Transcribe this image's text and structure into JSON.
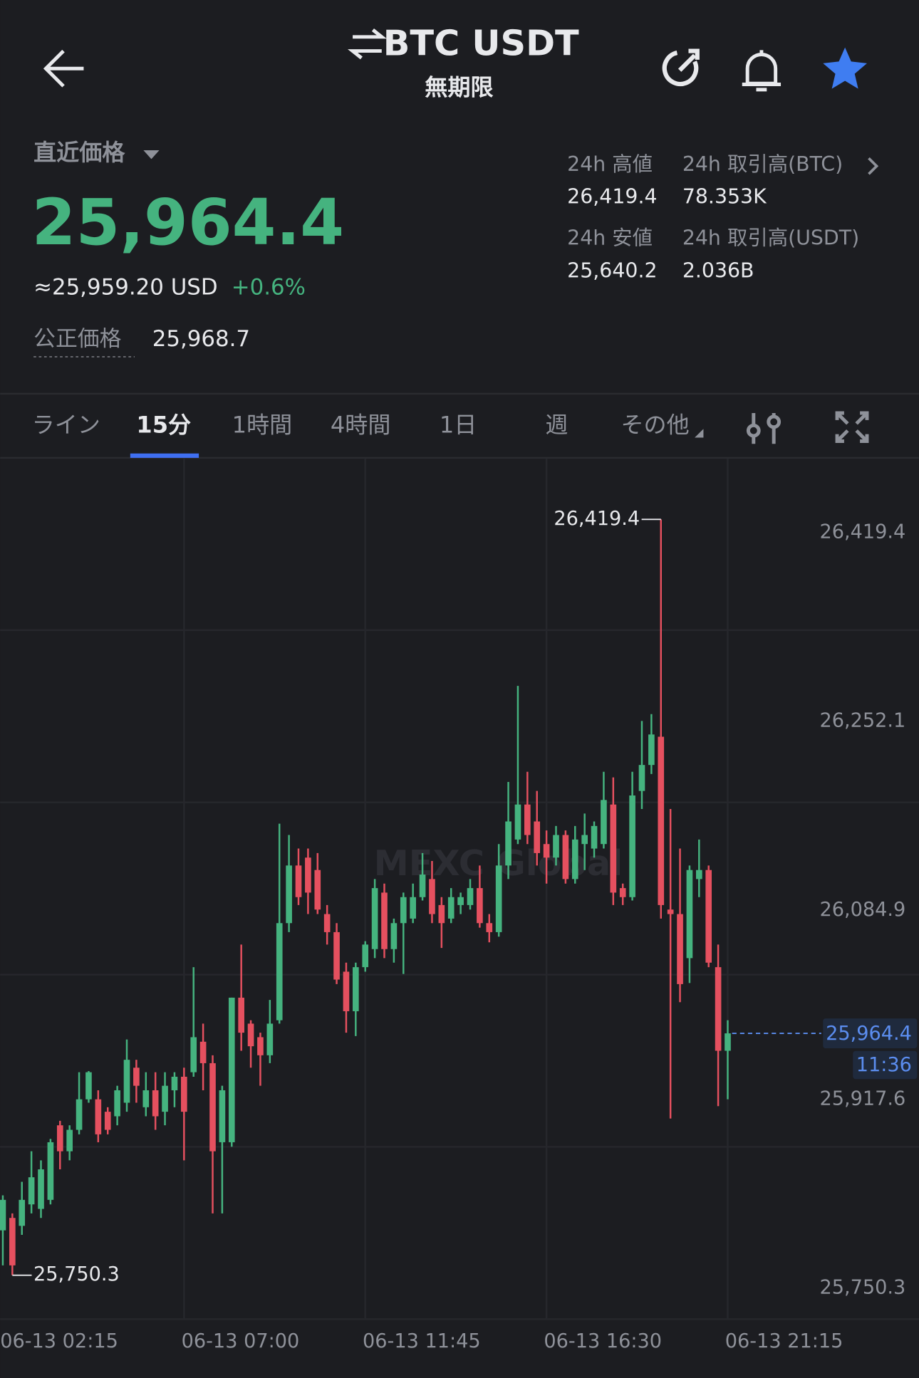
{
  "header": {
    "title": "BTC USDT",
    "subtitle": "無期限"
  },
  "price": {
    "label": "直近価格",
    "last": "25,964.4",
    "usd": "≈25,959.20 USD",
    "change": "+0.6%",
    "fair_label": "公正価格",
    "fair": "25,968.7"
  },
  "stats": [
    {
      "label": "24h 高値",
      "value": "26,419.4"
    },
    {
      "label": "24h 取引高(BTC)",
      "value": "78.353K"
    },
    {
      "label": "24h 安値",
      "value": "25,640.2"
    },
    {
      "label": "24h 取引高(USDT)",
      "value": "2.036B"
    }
  ],
  "tabs": [
    "ライン",
    "15分",
    "1時間",
    "4時間",
    "1日",
    "週",
    "その他"
  ],
  "chart_data": {
    "type": "candlestick",
    "watermark": "MEXC Global",
    "up_color": "#45b37f",
    "down_color": "#e5505f",
    "open": [
      25790,
      25801,
      25794,
      25813,
      25809,
      25817,
      25883,
      25860,
      25879,
      25906,
      25906,
      25895,
      25891,
      25903,
      25934,
      25899,
      25914,
      25895,
      25914,
      25926,
      25930,
      25957,
      25938,
      25868,
      25868,
      25996,
      25973,
      25961,
      25945,
      25976,
      26062,
      26113,
      26120,
      26109,
      26070,
      26054,
      26019,
      25984,
      26023,
      26039,
      26089,
      26039,
      26062,
      26066,
      26085,
      26101,
      26078,
      26066,
      26078,
      26078,
      26093,
      26062,
      26054,
      26113,
      26136,
      26167,
      26152,
      26132,
      26120,
      26140,
      26101,
      26132,
      26128,
      26132,
      26167,
      26093,
      26085,
      26179,
      26202,
      26227,
      26074,
      26070,
      26031,
      26101,
      26109,
      26023,
      25949
    ],
    "high": [
      25821,
      25805,
      25833,
      25860,
      25852,
      25871,
      25887,
      25883,
      25930,
      25931,
      25914,
      25899,
      25918,
      25959,
      25941,
      25930,
      25930,
      25930,
      25930,
      25934,
      26023,
      25973,
      25945,
      25918,
      25996,
      26043,
      25976,
      25965,
      25994,
      26150,
      26140,
      26128,
      26128,
      26124,
      26078,
      26062,
      26027,
      26027,
      26046,
      26101,
      26097,
      26066,
      26089,
      26097,
      26124,
      26117,
      26085,
      26093,
      26089,
      26101,
      26113,
      26070,
      26132,
      26187,
      26272,
      26196,
      26179,
      26144,
      26148,
      26144,
      26148,
      26159,
      26152,
      26196,
      26191,
      26097,
      26196,
      26241,
      26247,
      26419.4,
      26163,
      26128,
      26113,
      26136,
      26113,
      26043,
      25976
    ],
    "low": [
      25759,
      25750.3,
      25786,
      25805,
      25801,
      25813,
      25844,
      25852,
      25875,
      25903,
      25868,
      25875,
      25883,
      25895,
      25903,
      25891,
      25879,
      25883,
      25899,
      25852,
      25926,
      25914,
      25805,
      25805,
      25864,
      25949,
      25934,
      25918,
      25938,
      25973,
      26054,
      26078,
      26070,
      26070,
      26043,
      26008,
      25965,
      25962,
      26019,
      26031,
      26031,
      26027,
      26017,
      26062,
      26082,
      26062,
      26040,
      26062,
      26070,
      26074,
      26058,
      26045,
      26050,
      26101,
      26132,
      26132,
      26113,
      26097,
      26113,
      26097,
      26097,
      26109,
      26120,
      26128,
      26078,
      26078,
      26082,
      26163,
      26194,
      26066,
      25889,
      25992,
      26009,
      26085,
      26023,
      25900,
      25906
    ],
    "close": [
      25817,
      25759,
      25817,
      25837,
      25844,
      25868,
      25860,
      25879,
      25906,
      25930,
      25875,
      25879,
      25914,
      25941,
      25918,
      25914,
      25891,
      25918,
      25926,
      25895,
      25961,
      25938,
      25860,
      25914,
      25996,
      25965,
      25953,
      25945,
      25973,
      26062,
      26113,
      26085,
      26089,
      26074,
      26054,
      26012,
      25984,
      26023,
      26043,
      26093,
      26039,
      26062,
      26085,
      26085,
      26105,
      26070,
      26062,
      26085,
      26085,
      26093,
      26062,
      26054,
      26113,
      26152,
      26167,
      26140,
      26124,
      26120,
      26140,
      26101,
      26136,
      26140,
      26148,
      26171,
      26089,
      26085,
      26175,
      26202,
      26229,
      26078,
      26070,
      26008,
      26109,
      26109,
      26027,
      25949,
      25964.4
    ],
    "ylim": [
      25712.2,
      26473.1
    ],
    "yticks": [
      {
        "value": 26419.4,
        "label": "26,419.4"
      },
      {
        "value": 26252.1,
        "label": "26,252.1"
      },
      {
        "value": 26084.9,
        "label": "26,084.9"
      },
      {
        "value": 25917.6,
        "label": "25,917.6"
      },
      {
        "value": 25750.3,
        "label": "25,750.3"
      }
    ],
    "xlim": [
      -0.28,
      96.04
    ],
    "xticks": [
      {
        "value": 0,
        "label": "06-13 02:15"
      },
      {
        "value": 19,
        "label": "06-13 07:00"
      },
      {
        "value": 38,
        "label": "06-13 11:45"
      },
      {
        "value": 57,
        "label": "06-13 16:30"
      },
      {
        "value": 76,
        "label": "06-13 21:15"
      }
    ],
    "annotations": [
      {
        "value": 26419.4,
        "label": "26,419.4"
      },
      {
        "value": 25750.3,
        "label": "25,750.3"
      }
    ],
    "current_price": {
      "value": 25964.4,
      "label": "25,964.4"
    },
    "countdown": "11:36"
  }
}
